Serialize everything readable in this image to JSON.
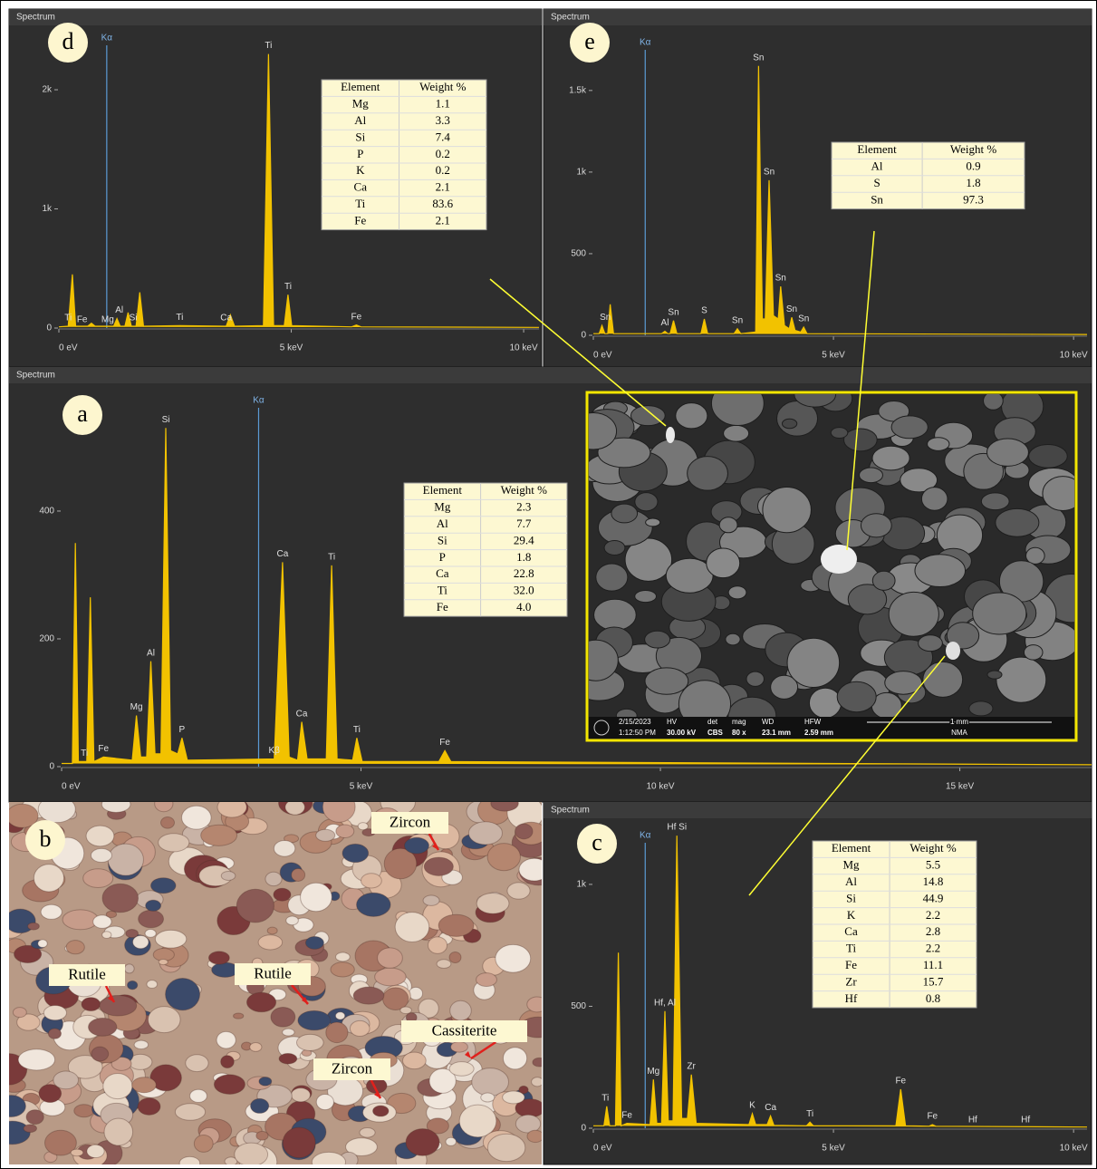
{
  "chart_data": [
    {
      "type": "line",
      "panel": "d",
      "title": "Spectrum",
      "color": "#f2c200",
      "x": [
        0,
        0.2,
        0.29,
        0.36,
        0.62,
        0.7,
        0.78,
        1.18,
        1.25,
        1.32,
        1.42,
        1.49,
        1.56,
        1.66,
        1.74,
        1.82,
        2.6,
        3.6,
        3.69,
        3.78,
        4.4,
        4.51,
        4.62,
        4.85,
        4.93,
        5.01,
        6.3,
        6.4,
        6.5,
        10.33
      ],
      "values": [
        10,
        15,
        450,
        15,
        15,
        40,
        15,
        15,
        80,
        15,
        15,
        130,
        15,
        15,
        300,
        15,
        20,
        15,
        110,
        15,
        20,
        2300,
        20,
        20,
        280,
        20,
        10,
        25,
        10,
        5
      ],
      "xlim": [
        0,
        10.33
      ],
      "ylim": [
        0,
        2525
      ],
      "xticks": [
        {
          "value": 0,
          "label": "0 eV"
        },
        {
          "value": 5,
          "label": "5 keV"
        },
        {
          "value": 10,
          "label": "10 keV"
        }
      ],
      "yticks": [
        0,
        {
          "value": 1000,
          "label": "1k"
        },
        {
          "value": 2000,
          "label": "2k"
        }
      ],
      "marker": {
        "x": 1.03,
        "label": "Kα"
      },
      "peak_labels": [
        {
          "text": "Ti",
          "x": 0.2
        },
        {
          "text": "Fe",
          "x": 0.5
        },
        {
          "text": "Mg",
          "x": 1.05
        },
        {
          "text": "Al",
          "x": 1.3
        },
        {
          "text": "Si",
          "x": 1.6
        },
        {
          "text": "Ti",
          "x": 2.6
        },
        {
          "text": "Ca",
          "x": 3.6
        },
        {
          "text": "Ti",
          "x": 4.51
        },
        {
          "text": "Ti",
          "x": 4.93
        },
        {
          "text": "Fe",
          "x": 6.4
        }
      ],
      "table": {
        "header": [
          "Element",
          "Weight %"
        ],
        "rows": [
          [
            "Mg",
            "1.1"
          ],
          [
            "Al",
            "3.3"
          ],
          [
            "Si",
            "7.4"
          ],
          [
            "P",
            "0.2"
          ],
          [
            "K",
            "0.2"
          ],
          [
            "Ca",
            "2.1"
          ],
          [
            "Ti",
            "83.6"
          ],
          [
            "Fe",
            "2.1"
          ]
        ]
      }
    },
    {
      "type": "line",
      "panel": "e",
      "title": "Spectrum",
      "color": "#f2c200",
      "x": [
        0,
        0.12,
        0.18,
        0.24,
        0.3,
        0.35,
        0.42,
        1.42,
        1.49,
        1.55,
        1.6,
        1.67,
        1.74,
        2.24,
        2.31,
        2.38,
        2.93,
        3.0,
        3.07,
        3.38,
        3.44,
        3.52,
        3.58,
        3.66,
        3.75,
        3.85,
        3.9,
        3.98,
        4.08,
        4.13,
        4.2,
        4.32,
        4.38,
        4.45,
        10.28
      ],
      "values": [
        10,
        10,
        60,
        10,
        10,
        190,
        10,
        10,
        25,
        10,
        10,
        90,
        10,
        10,
        100,
        10,
        10,
        40,
        10,
        20,
        1650,
        100,
        100,
        950,
        120,
        100,
        300,
        60,
        40,
        110,
        30,
        20,
        50,
        10,
        5
      ],
      "xlim": [
        0,
        10.28
      ],
      "ylim": [
        0,
        1860
      ],
      "xticks": [
        {
          "value": 0,
          "label": "0 eV"
        },
        {
          "value": 5,
          "label": "5 keV"
        },
        {
          "value": 10,
          "label": "10 keV"
        }
      ],
      "yticks": [
        0,
        500,
        {
          "value": 1000,
          "label": "1k"
        },
        {
          "value": 1500,
          "label": "1.5k"
        }
      ],
      "marker": {
        "x": 1.08,
        "label": "Kα"
      },
      "peak_labels": [
        {
          "text": "Sn",
          "x": 0.25
        },
        {
          "text": "Al",
          "x": 1.49
        },
        {
          "text": "Sn",
          "x": 1.67
        },
        {
          "text": "S",
          "x": 2.31
        },
        {
          "text": "Sn",
          "x": 3.0
        },
        {
          "text": "Sn",
          "x": 3.44
        },
        {
          "text": "Sn",
          "x": 3.66
        },
        {
          "text": "Sn",
          "x": 3.9
        },
        {
          "text": "Sn",
          "x": 4.13
        },
        {
          "text": "Sn",
          "x": 4.38
        }
      ],
      "table": {
        "header": [
          "Element",
          "Weight %"
        ],
        "rows": [
          [
            "Al",
            "0.9"
          ],
          [
            "S",
            "1.8"
          ],
          [
            "Sn",
            "97.3"
          ]
        ]
      }
    },
    {
      "type": "line",
      "panel": "a",
      "title": "Spectrum",
      "color": "#f2c200",
      "x": [
        0,
        0.18,
        0.23,
        0.28,
        0.35,
        0.42,
        0.48,
        0.54,
        0.7,
        1.18,
        1.25,
        1.32,
        1.42,
        1.49,
        1.56,
        1.66,
        1.74,
        1.82,
        1.94,
        2.01,
        2.1,
        3.55,
        3.69,
        3.8,
        3.94,
        4.01,
        4.1,
        4.42,
        4.51,
        4.6,
        4.86,
        4.93,
        5.02,
        6.3,
        6.4,
        6.5,
        17.2
      ],
      "values": [
        5,
        5,
        350,
        8,
        8,
        8,
        265,
        8,
        15,
        10,
        80,
        15,
        15,
        165,
        20,
        20,
        530,
        25,
        20,
        45,
        10,
        12,
        320,
        15,
        10,
        70,
        12,
        12,
        315,
        12,
        10,
        45,
        8,
        8,
        25,
        8,
        3
      ],
      "xlim": [
        0,
        17.2
      ],
      "ylim": [
        0,
        590
      ],
      "xticks": [
        {
          "value": 0,
          "label": "0 eV"
        },
        {
          "value": 5,
          "label": "5 keV"
        },
        {
          "value": 10,
          "label": "10 keV"
        },
        {
          "value": 15,
          "label": "15 keV"
        }
      ],
      "yticks": [
        0,
        200,
        400
      ],
      "marker": {
        "x": 3.29,
        "label": "Kα"
      },
      "peak_labels": [
        {
          "text": "Ti",
          "x": 0.38
        },
        {
          "text": "Fe",
          "x": 0.7
        },
        {
          "text": "Mg",
          "x": 1.25
        },
        {
          "text": "Al",
          "x": 1.49
        },
        {
          "text": "Si",
          "x": 1.74
        },
        {
          "text": "P",
          "x": 2.01
        },
        {
          "text": "Kβ",
          "x": 3.55
        },
        {
          "text": "Ca",
          "x": 3.69
        },
        {
          "text": "Ca",
          "x": 4.01
        },
        {
          "text": "Ti",
          "x": 4.51
        },
        {
          "text": "Ti",
          "x": 4.93
        },
        {
          "text": "Fe",
          "x": 6.4
        }
      ],
      "table": {
        "header": [
          "Element",
          "Weight %"
        ],
        "rows": [
          [
            "Mg",
            "2.3"
          ],
          [
            "Al",
            "7.7"
          ],
          [
            "Si",
            "29.4"
          ],
          [
            "P",
            "1.8"
          ],
          [
            "Ca",
            "22.8"
          ],
          [
            "Ti",
            "32.0"
          ],
          [
            "Fe",
            "4.0"
          ]
        ]
      }
    },
    {
      "type": "line",
      "panel": "c",
      "title": "Spectrum",
      "color": "#f2c200",
      "x": [
        0,
        0.22,
        0.28,
        0.34,
        0.46,
        0.52,
        0.58,
        0.7,
        1.18,
        1.25,
        1.32,
        1.42,
        1.49,
        1.56,
        1.66,
        1.74,
        1.84,
        1.96,
        2.04,
        2.14,
        3.24,
        3.31,
        3.38,
        3.62,
        3.69,
        3.76,
        4.44,
        4.51,
        4.58,
        6.3,
        6.4,
        6.5,
        6.99,
        7.06,
        7.13,
        10.28
      ],
      "values": [
        10,
        10,
        90,
        10,
        10,
        720,
        10,
        20,
        15,
        200,
        20,
        20,
        480,
        30,
        30,
        1200,
        40,
        40,
        220,
        20,
        15,
        60,
        15,
        15,
        50,
        12,
        10,
        25,
        10,
        10,
        160,
        10,
        8,
        15,
        8,
        5
      ],
      "xlim": [
        0,
        10.28
      ],
      "ylim": [
        0,
        1245
      ],
      "xticks": [
        {
          "value": 0,
          "label": "0 eV"
        },
        {
          "value": 5,
          "label": "5 keV"
        },
        {
          "value": 10,
          "label": "10 keV"
        }
      ],
      "yticks": [
        0,
        500,
        {
          "value": 1000,
          "label": "1k"
        }
      ],
      "marker": {
        "x": 1.08,
        "label": "Kα"
      },
      "peak_labels": [
        {
          "text": "Ti",
          "x": 0.25
        },
        {
          "text": "Fe",
          "x": 0.7
        },
        {
          "text": "Mg",
          "x": 1.25
        },
        {
          "text": "Hf, Al",
          "x": 1.49
        },
        {
          "text": "Hf Si",
          "x": 1.74
        },
        {
          "text": "Zr",
          "x": 2.04
        },
        {
          "text": "K",
          "x": 3.31
        },
        {
          "text": "Ca",
          "x": 3.69
        },
        {
          "text": "Ti",
          "x": 4.51
        },
        {
          "text": "Fe",
          "x": 6.4
        },
        {
          "text": "Fe",
          "x": 7.06
        },
        {
          "text": "Hf",
          "x": 7.9
        },
        {
          "text": "Hf",
          "x": 9.0
        }
      ],
      "table": {
        "header": [
          "Element",
          "Weight %"
        ],
        "rows": [
          [
            "Mg",
            "5.5"
          ],
          [
            "Al",
            "14.8"
          ],
          [
            "Si",
            "44.9"
          ],
          [
            "K",
            "2.2"
          ],
          [
            "Ca",
            "2.8"
          ],
          [
            "Ti",
            "2.2"
          ],
          [
            "Fe",
            "11.1"
          ],
          [
            "Zr",
            "15.7"
          ],
          [
            "Hf",
            "0.8"
          ]
        ]
      }
    }
  ],
  "photo": {
    "panel": "b",
    "labels": [
      "Zircon",
      "Rutile",
      "Rutile",
      "Cassiterite",
      "Zircon"
    ]
  },
  "sem": {
    "date": "2/15/2023",
    "time": "1:12:50 PM",
    "fields": [
      {
        "name": "HV",
        "value": "30.00 kV"
      },
      {
        "name": "det",
        "value": "CBS"
      },
      {
        "name": "mag",
        "value": "80 x"
      },
      {
        "name": "WD",
        "value": "23.1 mm"
      },
      {
        "name": "HFW",
        "value": "2.59 mm"
      }
    ],
    "scale": "1 mm",
    "lab": "NMA"
  }
}
